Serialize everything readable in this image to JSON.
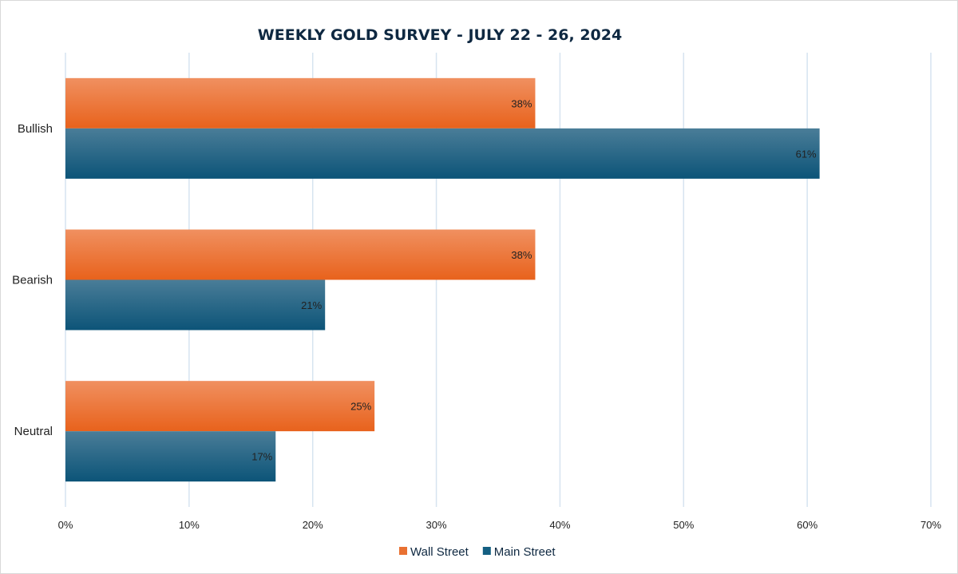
{
  "chart_data": {
    "type": "bar",
    "orientation": "horizontal",
    "title": "WEEKLY GOLD SURVEY - JULY 22 - 26, 2024",
    "categories": [
      "Bullish",
      "Bearish",
      "Neutral"
    ],
    "series": [
      {
        "name": "Wall Street",
        "values": [
          38,
          38,
          25
        ],
        "color": "#e97132"
      },
      {
        "name": "Main Street",
        "values": [
          61,
          21,
          17
        ],
        "color": "#145f82"
      }
    ],
    "data_labels": {
      "Wall Street": [
        "38%",
        "38%",
        "25%"
      ],
      "Main Street": [
        "61%",
        "21%",
        "17%"
      ]
    },
    "xlim": [
      0,
      70
    ],
    "x_ticks": [
      "0%",
      "10%",
      "20%",
      "30%",
      "40%",
      "50%",
      "60%",
      "70%"
    ],
    "grid": "vertical",
    "legend": "bottom"
  }
}
